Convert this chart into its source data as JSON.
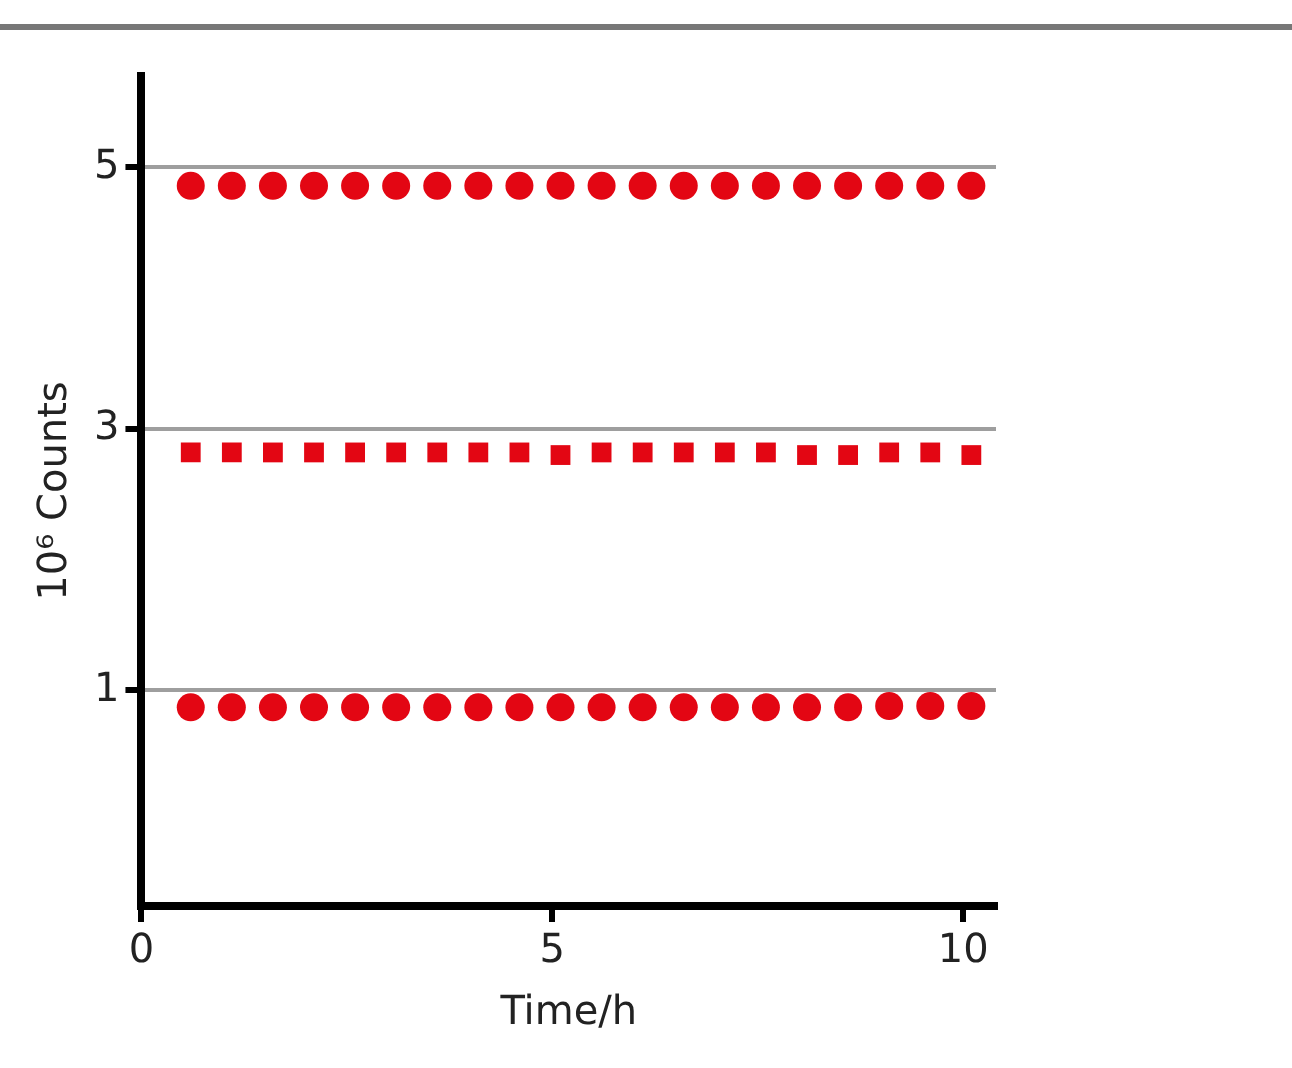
{
  "chart_data": {
    "type": "scatter",
    "xlabel": "Time/h",
    "ylabel": "10⁶ Counts",
    "x": [
      0.6,
      1.1,
      1.6,
      2.1,
      2.6,
      3.1,
      3.6,
      4.1,
      4.6,
      5.1,
      5.6,
      6.1,
      6.6,
      7.1,
      7.6,
      8.1,
      8.6,
      9.1,
      9.6,
      10.1
    ],
    "series": [
      {
        "color": "#e30613",
        "marker": "circle",
        "values": [
          4.86,
          4.86,
          4.86,
          4.86,
          4.86,
          4.86,
          4.86,
          4.86,
          4.86,
          4.86,
          4.86,
          4.86,
          4.86,
          4.86,
          4.86,
          4.86,
          4.86,
          4.86,
          4.86,
          4.86
        ]
      },
      {
        "color": "#e30613",
        "marker": "square",
        "values": [
          2.82,
          2.82,
          2.82,
          2.82,
          2.82,
          2.82,
          2.82,
          2.82,
          2.82,
          2.8,
          2.82,
          2.82,
          2.82,
          2.82,
          2.82,
          2.8,
          2.8,
          2.82,
          2.82,
          2.8
        ]
      },
      {
        "color": "#e30613",
        "marker": "circle",
        "values": [
          0.87,
          0.87,
          0.87,
          0.87,
          0.87,
          0.87,
          0.87,
          0.87,
          0.87,
          0.87,
          0.87,
          0.87,
          0.87,
          0.87,
          0.87,
          0.87,
          0.87,
          0.88,
          0.88,
          0.88
        ]
      }
    ],
    "xlim": [
      0,
      10.4
    ],
    "xticks": [
      0,
      5,
      10
    ],
    "ylim": [
      -0.65,
      5.7
    ],
    "yticks": [
      1,
      3,
      5
    ],
    "grid": "y"
  }
}
